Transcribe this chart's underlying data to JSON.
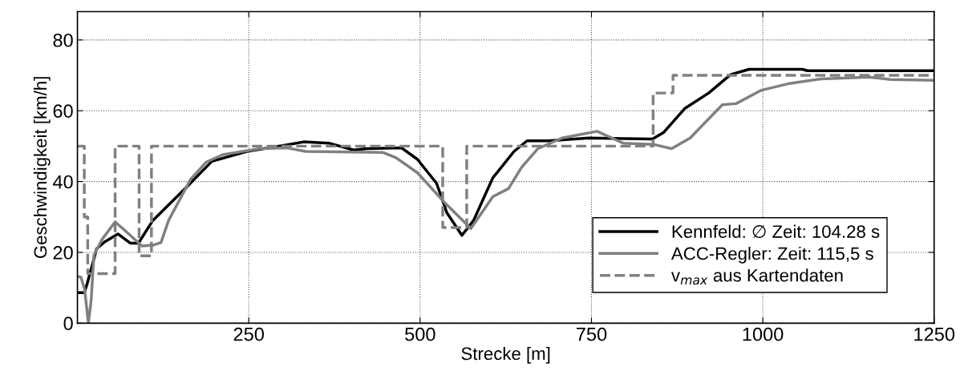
{
  "chart_data": {
    "type": "line",
    "xlabel": "Strecke [m]",
    "ylabel": "Geschwindigkeit [km/h]",
    "xlim": [
      0,
      1250
    ],
    "ylim": [
      0,
      88
    ],
    "xticks": [
      250,
      500,
      750,
      1000,
      1250
    ],
    "yticks": [
      0,
      20,
      40,
      60,
      80
    ],
    "grid": true,
    "legend": "bottom right",
    "line_style": "solid",
    "marker": "none",
    "series": [
      {
        "name": "Kennfeld: ∅ Zeit: 104.28 s",
        "color": "#000000",
        "x": [
          0,
          10,
          14,
          28,
          40,
          59,
          77,
          89,
          110,
          157,
          196,
          247,
          301,
          330,
          368,
          403,
          422,
          473,
          496,
          524,
          539,
          561,
          578,
          606,
          637,
          656,
          687,
          746,
          839,
          855,
          886,
          921,
          953,
          980,
          1058,
          1065,
          1250
        ],
        "values": [
          8.6,
          8.6,
          11,
          21,
          23,
          25.2,
          22.6,
          22.6,
          29,
          38,
          45.7,
          48.5,
          50.2,
          51.2,
          50.8,
          48.9,
          49.3,
          49.5,
          46.3,
          39.5,
          31.2,
          24.8,
          29,
          41,
          48.5,
          51.5,
          51.5,
          52.3,
          52,
          53.8,
          60.6,
          65,
          70.2,
          71.7,
          71.7,
          71.3,
          71.3
        ]
      },
      {
        "name": "ACC-Regler: Zeit: 115,5 s",
        "color": "#808080",
        "x": [
          0,
          5,
          10.5,
          16,
          20,
          24,
          36,
          55,
          75,
          94,
          110,
          122,
          133,
          165,
          188,
          212,
          266,
          306,
          333,
          446,
          465,
          496,
          535,
          570,
          574,
          606,
          629,
          648,
          672,
          707,
          758,
          797,
          840,
          867,
          894,
          941,
          961,
          998,
          1039,
          1085,
          1156,
          1187,
          1250
        ],
        "values": [
          13.2,
          13,
          9.5,
          0,
          6.4,
          19.2,
          23.7,
          28.6,
          25.2,
          21.8,
          22,
          22.8,
          29,
          40.6,
          45.5,
          47.6,
          49.3,
          49.5,
          48.5,
          48.2,
          46.7,
          42.5,
          34.2,
          27.5,
          26.7,
          35.7,
          38,
          44,
          49.3,
          52.3,
          54.2,
          50.8,
          50.5,
          49.3,
          52.3,
          61.7,
          62,
          65.8,
          67.7,
          69,
          69.5,
          68.8,
          68.6
        ]
      },
      {
        "name": "v$_{max}$ aus Kartendaten",
        "type": "step",
        "color": "#808080",
        "line_style": "dashed",
        "x": [
          0,
          10,
          15,
          55,
          90,
          108,
          533,
          568,
          840,
          869,
          1250
        ],
        "values": [
          50,
          30,
          14,
          50,
          19,
          50,
          27,
          50,
          65,
          70,
          70
        ]
      }
    ]
  }
}
